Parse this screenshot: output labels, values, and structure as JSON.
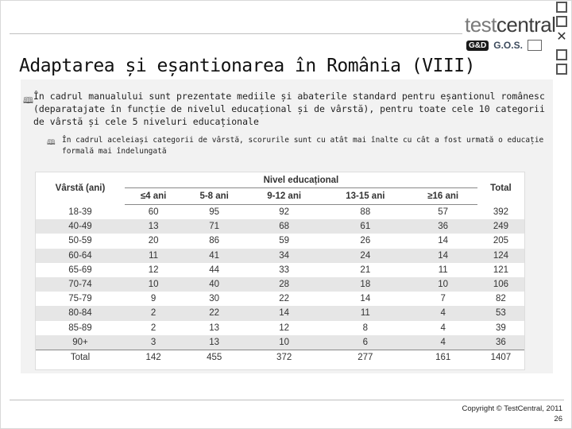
{
  "slide": {
    "title": "Adaptarea și eșantionarea în România (VIII)",
    "bullet1": "În cadrul manualului sunt prezentate mediile și abaterile standard pentru eșantionul românesc (deparatajate în funcție de nivelul educațional și de vârstă), pentru toate cele 10 categorii de vârstă și cele 5 niveluri educaționale",
    "bullet2": "În cadrul aceleiași categorii de vârstă, scorurile sunt cu atât mai înalte cu cât a fost urmată o educație formală mai îndelungată",
    "copyright": "Copyright © TestCentral, 2011",
    "page_number": "26"
  },
  "logo": {
    "word_part1": "test",
    "word_part2": "central",
    "mark1": "G&D",
    "mark2": "G.O.S."
  },
  "window": {
    "close_glyph": "✕"
  },
  "table": {
    "col_age": "Vârstă (ani)",
    "group_header": "Nivel educațional",
    "levels": [
      "≤4 ani",
      "5-8 ani",
      "9-12 ani",
      "13-15 ani",
      "≥16 ani"
    ],
    "col_total": "Total",
    "rows": [
      {
        "age": "18-39",
        "v": [
          "60",
          "95",
          "92",
          "88",
          "57"
        ],
        "total": "392"
      },
      {
        "age": "40-49",
        "v": [
          "13",
          "71",
          "68",
          "61",
          "36"
        ],
        "total": "249"
      },
      {
        "age": "50-59",
        "v": [
          "20",
          "86",
          "59",
          "26",
          "14"
        ],
        "total": "205"
      },
      {
        "age": "60-64",
        "v": [
          "11",
          "41",
          "34",
          "24",
          "14"
        ],
        "total": "124"
      },
      {
        "age": "65-69",
        "v": [
          "12",
          "44",
          "33",
          "21",
          "11"
        ],
        "total": "121"
      },
      {
        "age": "70-74",
        "v": [
          "10",
          "40",
          "28",
          "18",
          "10"
        ],
        "total": "106"
      },
      {
        "age": "75-79",
        "v": [
          "9",
          "30",
          "22",
          "14",
          "7"
        ],
        "total": "82"
      },
      {
        "age": "80-84",
        "v": [
          "2",
          "22",
          "14",
          "11",
          "4"
        ],
        "total": "53"
      },
      {
        "age": "85-89",
        "v": [
          "2",
          "13",
          "12",
          "8",
          "4"
        ],
        "total": "39"
      },
      {
        "age": "90+",
        "v": [
          "3",
          "13",
          "10",
          "6",
          "4"
        ],
        "total": "36"
      }
    ],
    "total_row": {
      "age": "Total",
      "v": [
        "142",
        "455",
        "372",
        "277",
        "161"
      ],
      "total": "1407"
    }
  }
}
